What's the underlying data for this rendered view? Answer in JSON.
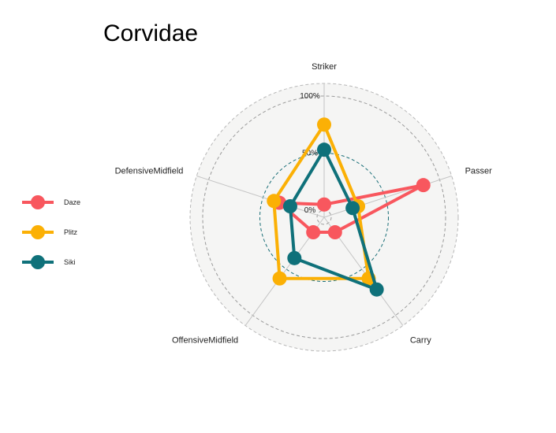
{
  "chart_data": {
    "type": "radar",
    "title": "Corvidae",
    "axes": [
      "Striker",
      "Passer",
      "Carry",
      "OffensiveMidfield",
      "DefensiveMidfield"
    ],
    "ticks": [
      {
        "value": 0,
        "label": "0%"
      },
      {
        "value": 50,
        "label": "50%"
      },
      {
        "value": 100,
        "label": "100%"
      }
    ],
    "range": [
      0,
      100
    ],
    "grid": "dashed circles at 0%, 50%, 100%",
    "legend_position": "left",
    "series": [
      {
        "name": "Daze",
        "color": "#f8575e",
        "values": [
          5,
          85,
          10,
          10,
          35
        ]
      },
      {
        "name": "Plitz",
        "color": "#fbb005",
        "values": [
          75,
          25,
          60,
          60,
          40
        ]
      },
      {
        "name": "Siki",
        "color": "#0f717a",
        "values": [
          53,
          20,
          72,
          38,
          25
        ]
      }
    ]
  }
}
